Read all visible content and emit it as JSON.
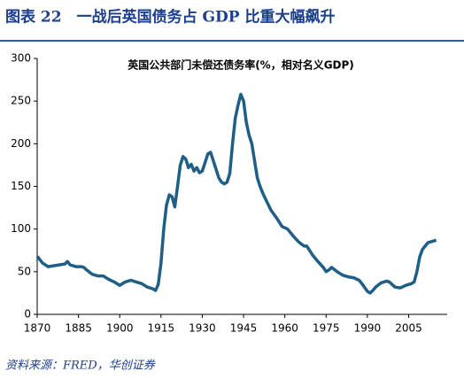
{
  "chart_data": {
    "type": "line",
    "title": "图表 22　一战后英国债务占 GDP 比重大幅飙升",
    "subtitle": "英国公共部门未偿还债务率(%，相对名义GDP)",
    "source": "资料来源：FRED，华创证券",
    "color": "#1f5f87",
    "xlim": [
      1870,
      2019
    ],
    "xticks": [
      1870,
      1885,
      1900,
      1915,
      1930,
      1945,
      1960,
      1975,
      1990,
      2005
    ],
    "ylim": [
      0,
      300
    ],
    "yticks": [
      0,
      50,
      100,
      150,
      200,
      250,
      300
    ],
    "x": [
      1870,
      1872,
      1874,
      1876,
      1878,
      1880,
      1881,
      1882,
      1884,
      1886,
      1887,
      1888,
      1890,
      1892,
      1894,
      1896,
      1898,
      1900,
      1902,
      1904,
      1906,
      1908,
      1910,
      1912,
      1913,
      1914,
      1915,
      1916,
      1917,
      1918,
      1919,
      1920,
      1921,
      1922,
      1923,
      1924,
      1925,
      1926,
      1927,
      1928,
      1929,
      1930,
      1931,
      1932,
      1933,
      1934,
      1935,
      1936,
      1937,
      1938,
      1939,
      1940,
      1941,
      1942,
      1943,
      1944,
      1945,
      1946,
      1947,
      1948,
      1949,
      1950,
      1951,
      1952,
      1953,
      1955,
      1957,
      1959,
      1961,
      1963,
      1965,
      1967,
      1968,
      1970,
      1972,
      1974,
      1975,
      1976,
      1977,
      1979,
      1981,
      1983,
      1985,
      1987,
      1988,
      1990,
      1991,
      1992,
      1993,
      1995,
      1997,
      1998,
      1999,
      2000,
      2002,
      2004,
      2006,
      2007,
      2008,
      2009,
      2010,
      2011,
      2012,
      2014,
      2015
    ],
    "values": [
      68,
      60,
      56,
      57,
      58,
      59,
      62,
      58,
      56,
      56,
      55,
      52,
      47,
      45,
      45,
      41,
      38,
      34,
      38,
      40,
      38,
      36,
      32,
      30,
      28,
      35,
      60,
      100,
      128,
      140,
      138,
      126,
      150,
      175,
      185,
      182,
      172,
      176,
      168,
      172,
      166,
      168,
      178,
      188,
      190,
      180,
      170,
      160,
      155,
      153,
      155,
      165,
      200,
      230,
      245,
      258,
      250,
      225,
      210,
      200,
      180,
      160,
      150,
      142,
      135,
      122,
      113,
      103,
      100,
      92,
      85,
      80,
      80,
      70,
      62,
      55,
      50,
      52,
      55,
      50,
      46,
      44,
      43,
      40,
      36,
      27,
      25,
      28,
      32,
      37,
      39,
      38,
      35,
      32,
      31,
      34,
      36,
      38,
      50,
      67,
      76,
      80,
      84,
      86,
      87
    ]
  }
}
